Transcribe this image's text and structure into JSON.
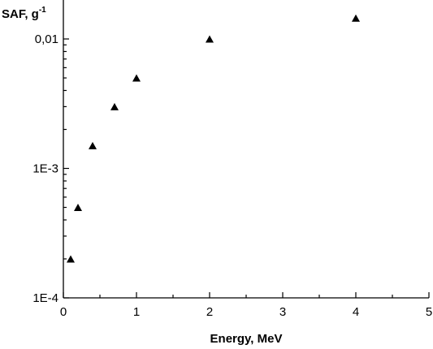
{
  "chart_data": {
    "type": "scatter",
    "title": "",
    "xlabel": "Energy, MeV",
    "ylabel_base": "SAF, g",
    "ylabel_exponent": "-1",
    "x_scale": "linear",
    "y_scale": "log",
    "xlim": [
      0,
      5
    ],
    "ylim": [
      0.0001,
      0.02
    ],
    "x_ticks": [
      {
        "value": 0,
        "label": "0"
      },
      {
        "value": 1,
        "label": "1"
      },
      {
        "value": 2,
        "label": "2"
      },
      {
        "value": 3,
        "label": "3"
      },
      {
        "value": 4,
        "label": "4"
      },
      {
        "value": 5,
        "label": "5"
      }
    ],
    "y_ticks": [
      {
        "value": 0.0001,
        "label": "1E-4"
      },
      {
        "value": 0.001,
        "label": "1E-3"
      },
      {
        "value": 0.01,
        "label": "0,01"
      }
    ],
    "grid": false,
    "legend": "none",
    "marker": "filled-triangle-up",
    "marker_color": "#000000",
    "series": [
      {
        "points": [
          {
            "x": 0.1,
            "y": 0.0002
          },
          {
            "x": 0.2,
            "y": 0.0005
          },
          {
            "x": 0.4,
            "y": 0.0015
          },
          {
            "x": 0.7,
            "y": 0.003
          },
          {
            "x": 1.0,
            "y": 0.005
          },
          {
            "x": 2.0,
            "y": 0.01
          },
          {
            "x": 4.0,
            "y": 0.0145
          }
        ]
      }
    ]
  }
}
